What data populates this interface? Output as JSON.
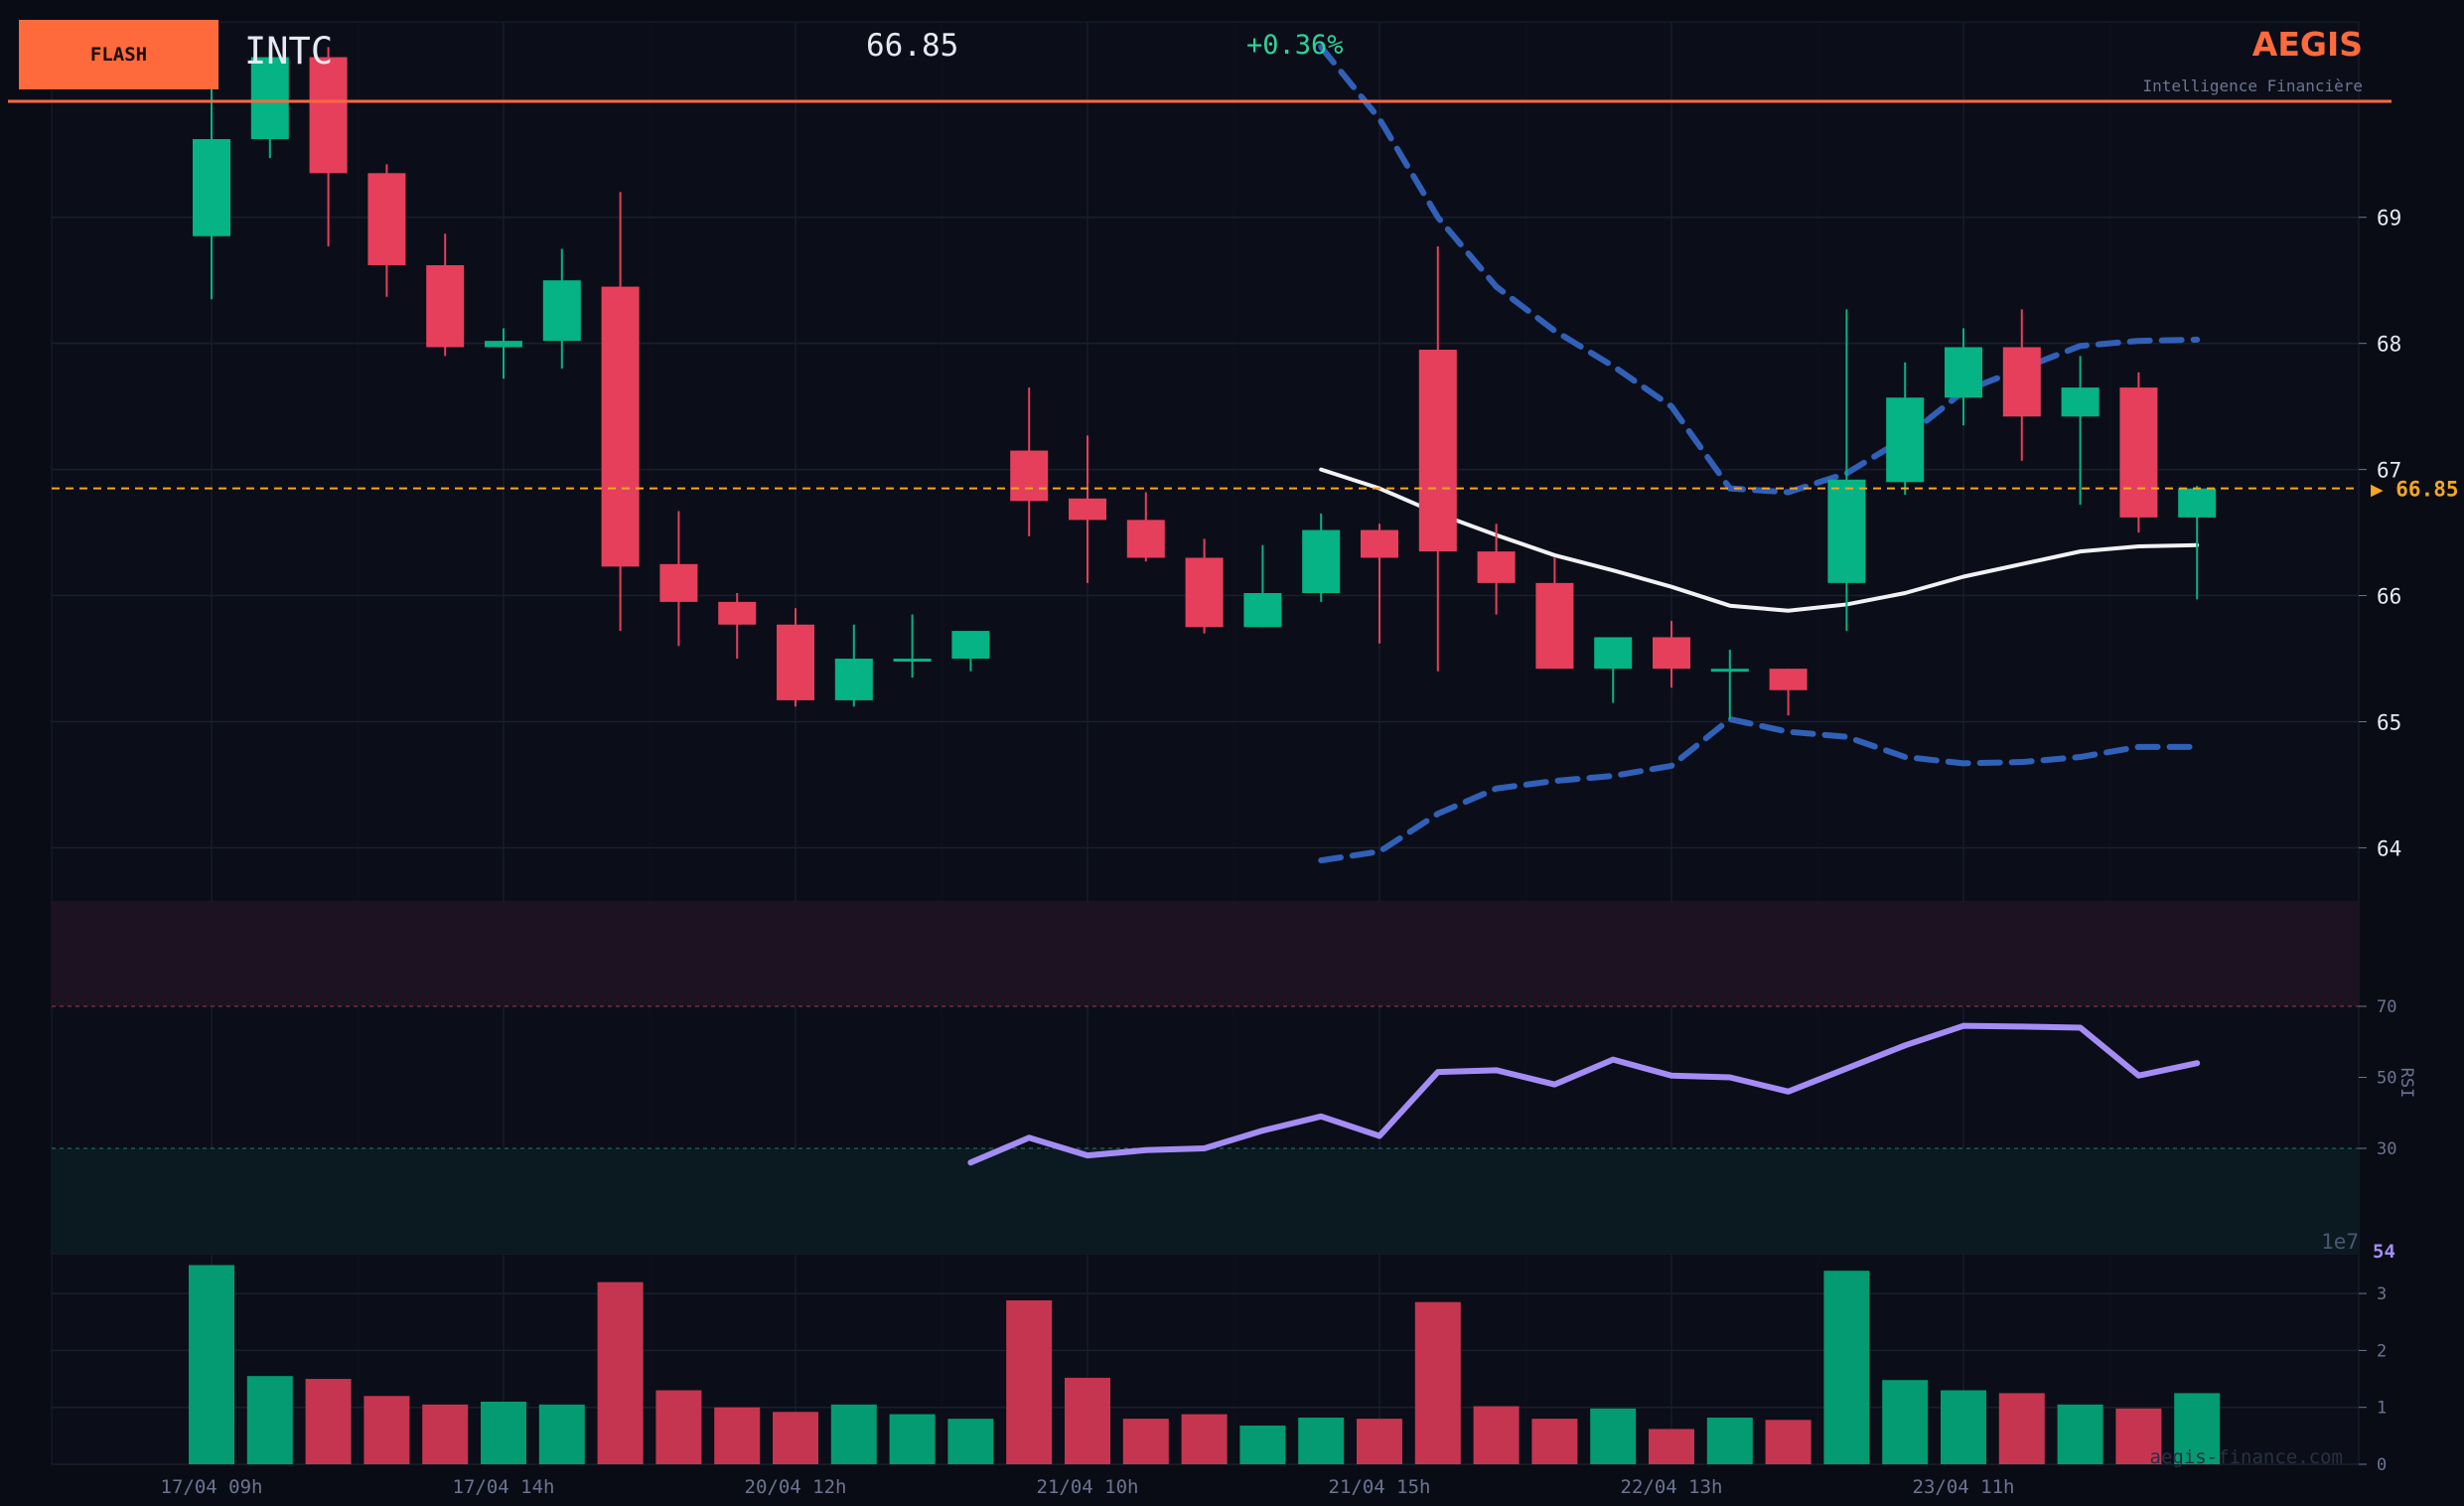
{
  "header": {
    "badge": "FLASH",
    "ticker": "INTC",
    "price": "66.85",
    "change": "+0.36%",
    "brand": "AEGIS",
    "tagline": "Intelligence Financière",
    "watermark": "aegis-finance.com"
  },
  "colors": {
    "up": "#05b384",
    "down": "#e63f5c",
    "accent": "#ff6a3d",
    "price_line": "#f5a623",
    "ma": "#f2f2f5",
    "band": "#3160b8",
    "rsi": "#a58cf5",
    "background": "#0a0c15"
  },
  "chart_data": [
    {
      "type": "candlestick",
      "name": "price",
      "ylim": [
        63.57,
        70.55
      ],
      "yticks": [
        64,
        65,
        66,
        67,
        68,
        69
      ],
      "grid": true,
      "x_tick_labels": [
        "17/04 09h",
        "17/04 14h",
        "20/04 12h",
        "21/04 10h",
        "21/04 15h",
        "22/04 13h",
        "23/04 11h"
      ],
      "x_tick_positions": [
        0,
        5,
        10,
        15,
        20,
        25,
        30
      ],
      "last_price": 66.85,
      "last_price_label": "▶ 66.85",
      "candles": [
        {
          "o": 68.85,
          "h": 70.25,
          "l": 68.35,
          "c": 69.62
        },
        {
          "o": 69.62,
          "h": 70.35,
          "l": 69.47,
          "c": 70.27
        },
        {
          "o": 70.27,
          "h": 70.35,
          "l": 68.77,
          "c": 69.35
        },
        {
          "o": 69.35,
          "h": 69.42,
          "l": 68.37,
          "c": 68.62
        },
        {
          "o": 68.62,
          "h": 68.87,
          "l": 67.9,
          "c": 67.97
        },
        {
          "o": 67.97,
          "h": 68.12,
          "l": 67.72,
          "c": 68.02
        },
        {
          "o": 68.02,
          "h": 68.75,
          "l": 67.8,
          "c": 68.5
        },
        {
          "o": 68.45,
          "h": 69.2,
          "l": 65.72,
          "c": 66.23
        },
        {
          "o": 66.25,
          "h": 66.67,
          "l": 65.6,
          "c": 65.95
        },
        {
          "o": 65.95,
          "h": 66.02,
          "l": 65.5,
          "c": 65.77
        },
        {
          "o": 65.77,
          "h": 65.9,
          "l": 65.12,
          "c": 65.17
        },
        {
          "o": 65.17,
          "h": 65.77,
          "l": 65.12,
          "c": 65.5
        },
        {
          "o": 65.5,
          "h": 65.85,
          "l": 65.35,
          "c": 65.5
        },
        {
          "o": 65.5,
          "h": 65.72,
          "l": 65.4,
          "c": 65.72
        },
        {
          "o": 67.15,
          "h": 67.65,
          "l": 66.47,
          "c": 66.75
        },
        {
          "o": 66.77,
          "h": 67.27,
          "l": 66.1,
          "c": 66.6
        },
        {
          "o": 66.6,
          "h": 66.82,
          "l": 66.27,
          "c": 66.3
        },
        {
          "o": 66.3,
          "h": 66.45,
          "l": 65.7,
          "c": 65.75
        },
        {
          "o": 65.75,
          "h": 66.4,
          "l": 65.75,
          "c": 66.02
        },
        {
          "o": 66.02,
          "h": 66.65,
          "l": 65.95,
          "c": 66.52
        },
        {
          "o": 66.52,
          "h": 66.57,
          "l": 65.62,
          "c": 66.3
        },
        {
          "o": 67.95,
          "h": 68.77,
          "l": 65.4,
          "c": 66.35
        },
        {
          "o": 66.35,
          "h": 66.57,
          "l": 65.85,
          "c": 66.1
        },
        {
          "o": 66.1,
          "h": 66.3,
          "l": 65.42,
          "c": 65.42
        },
        {
          "o": 65.42,
          "h": 65.67,
          "l": 65.15,
          "c": 65.67
        },
        {
          "o": 65.67,
          "h": 65.8,
          "l": 65.27,
          "c": 65.42
        },
        {
          "o": 65.42,
          "h": 65.57,
          "l": 65.02,
          "c": 65.42
        },
        {
          "o": 65.42,
          "h": 65.42,
          "l": 65.05,
          "c": 65.25
        },
        {
          "o": 66.1,
          "h": 68.27,
          "l": 65.72,
          "c": 66.92
        },
        {
          "o": 66.9,
          "h": 67.85,
          "l": 66.8,
          "c": 67.57
        },
        {
          "o": 67.57,
          "h": 68.12,
          "l": 67.35,
          "c": 67.97
        },
        {
          "o": 67.97,
          "h": 68.27,
          "l": 67.07,
          "c": 67.42
        },
        {
          "o": 67.42,
          "h": 67.9,
          "l": 66.72,
          "c": 67.65
        },
        {
          "o": 67.65,
          "h": 67.77,
          "l": 66.5,
          "c": 66.62
        },
        {
          "o": 66.62,
          "h": 66.87,
          "l": 65.97,
          "c": 66.85
        }
      ],
      "overlays": [
        {
          "kind": "moving_average",
          "start_index": 19,
          "values": [
            67.0,
            66.85,
            66.65,
            66.48,
            66.32,
            66.2,
            66.07,
            65.92,
            65.88,
            65.93,
            66.02,
            66.15,
            66.25,
            66.35,
            66.39,
            66.4
          ]
        },
        {
          "kind": "band_upper",
          "start_index": 19,
          "values": [
            70.35,
            69.78,
            69.0,
            68.45,
            68.1,
            67.82,
            67.5,
            66.85,
            66.82,
            66.97,
            67.25,
            67.62,
            67.8,
            67.98,
            68.02,
            68.03
          ]
        },
        {
          "kind": "band_lower",
          "start_index": 19,
          "values": [
            63.9,
            63.97,
            64.27,
            64.47,
            64.53,
            64.57,
            64.65,
            65.02,
            64.92,
            64.88,
            64.72,
            64.67,
            64.68,
            64.72,
            64.8,
            64.8
          ]
        }
      ]
    },
    {
      "type": "line",
      "name": "RSI",
      "ylabel": "RSI",
      "yticks": [
        30,
        50,
        70
      ],
      "ylim": [
        0,
        100
      ],
      "overbought": 70,
      "oversold": 30,
      "current_label": "54",
      "start_index": 13,
      "values": [
        26,
        33,
        28,
        29.5,
        30,
        35,
        39,
        33.5,
        51.5,
        52,
        48,
        55,
        50.5,
        50,
        46,
        52.5,
        59,
        64.5,
        64.3,
        64,
        50.5,
        54
      ]
    },
    {
      "type": "bar",
      "name": "volume",
      "scale_label": "1e7",
      "yticks": [
        0,
        1,
        2,
        3
      ],
      "ylim": [
        0,
        3.7
      ],
      "values": [
        3.5,
        1.55,
        1.5,
        1.2,
        1.05,
        1.1,
        1.05,
        3.2,
        1.3,
        1.0,
        0.92,
        1.05,
        0.88,
        0.8,
        2.88,
        1.52,
        0.8,
        0.88,
        0.68,
        0.82,
        0.8,
        2.85,
        1.02,
        0.8,
        0.98,
        0.62,
        0.82,
        0.78,
        3.4,
        1.48,
        1.3,
        1.25,
        1.05,
        0.98,
        1.25
      ]
    }
  ]
}
